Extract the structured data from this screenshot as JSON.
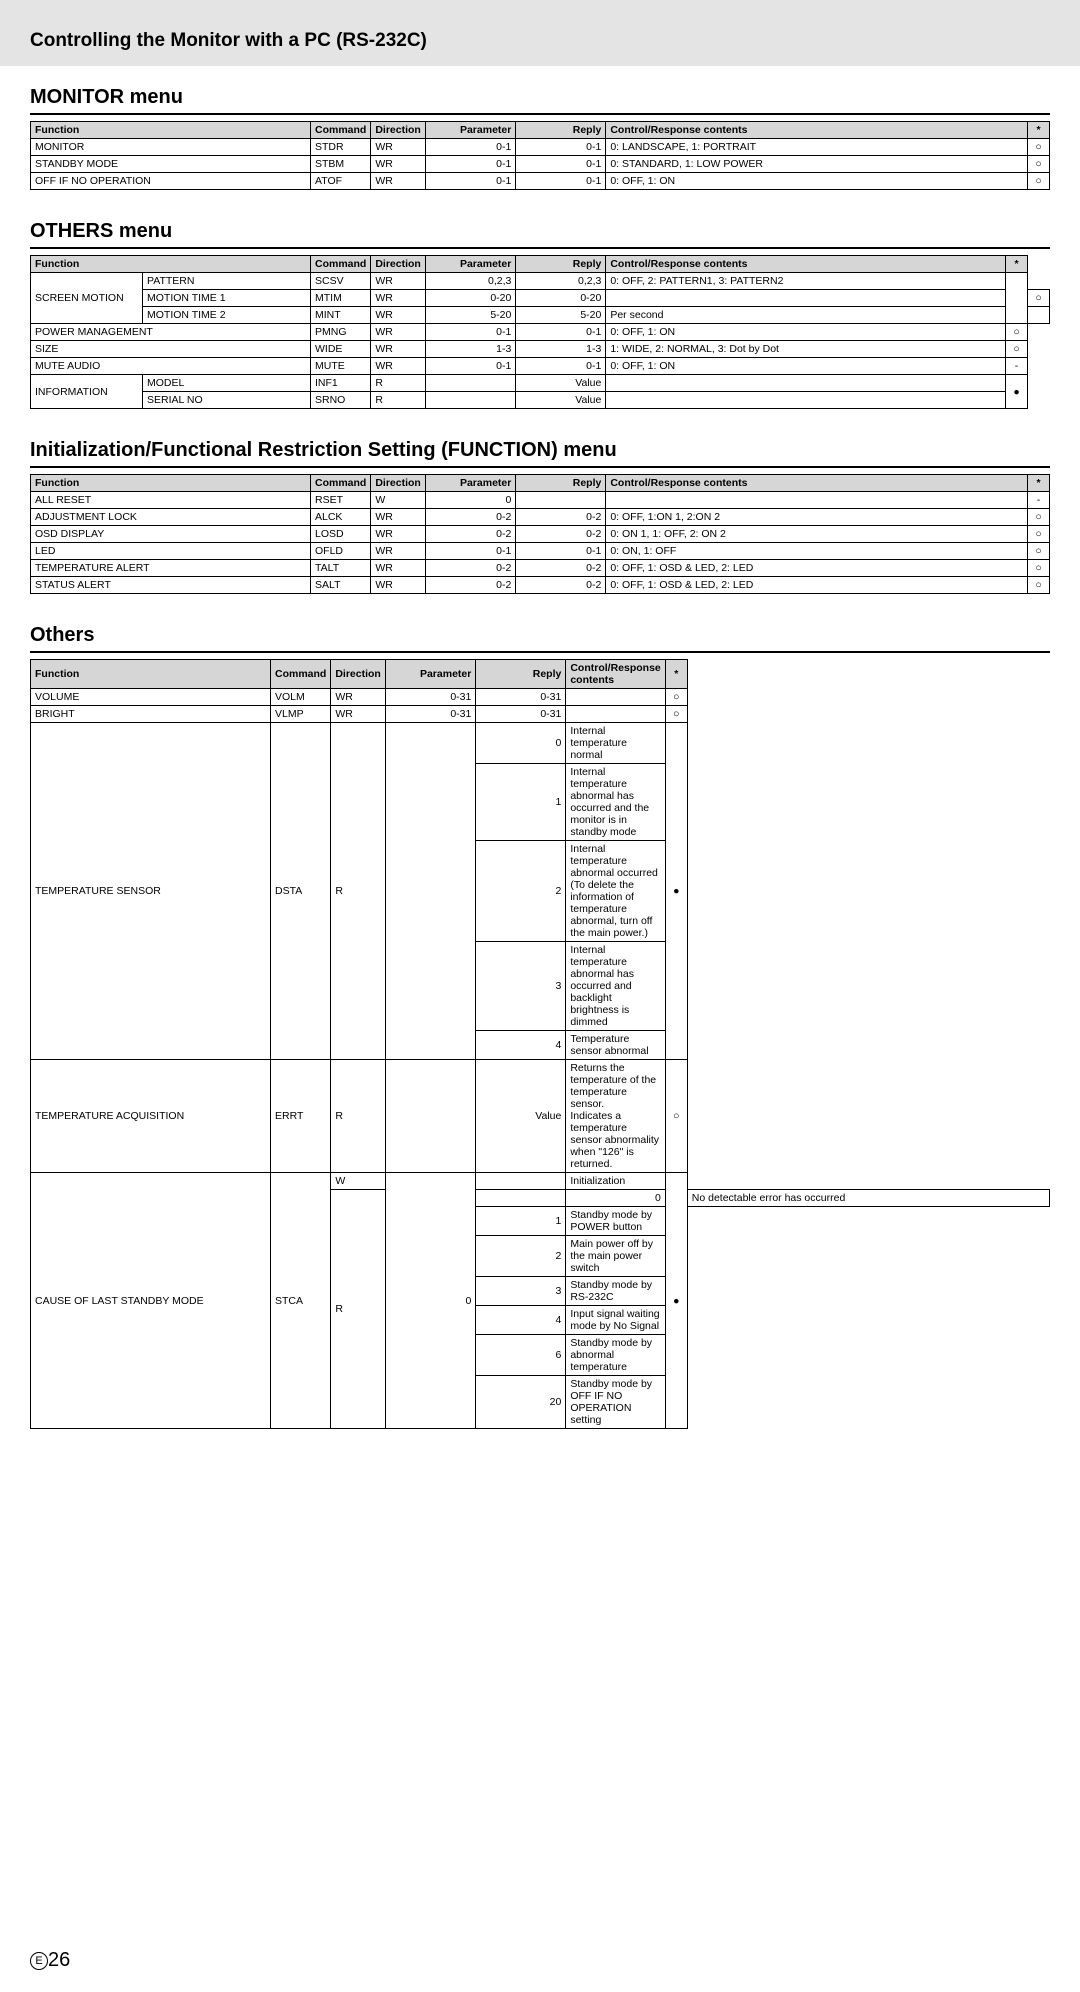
{
  "page": {
    "headerTitle": "Controlling the Monitor with a PC (RS-232C)",
    "pageNumber": "26",
    "pageE": "E"
  },
  "cols": {
    "function": "Function",
    "command": "Command",
    "direction": "Direction",
    "parameter": "Parameter",
    "reply": "Reply",
    "content": "Control/Response contents",
    "star": "*"
  },
  "monitor": {
    "title": "MONITOR menu",
    "rows": [
      {
        "func": "MONITOR",
        "cmd": "STDR",
        "dir": "WR",
        "param": "0-1",
        "reply": "0-1",
        "content": "0: LANDSCAPE, 1: PORTRAIT",
        "star": "○"
      },
      {
        "func": "STANDBY MODE",
        "cmd": "STBM",
        "dir": "WR",
        "param": "0-1",
        "reply": "0-1",
        "content": "0: STANDARD, 1: LOW POWER",
        "star": "○"
      },
      {
        "func": "OFF IF NO OPERATION",
        "cmd": "ATOF",
        "dir": "WR",
        "param": "0-1",
        "reply": "0-1",
        "content": "0: OFF, 1: ON",
        "star": "○"
      }
    ]
  },
  "others_menu": {
    "title": "OTHERS menu",
    "rows": [
      {
        "func": "SCREEN MOTION",
        "sub": "PATTERN",
        "cmd": "SCSV",
        "dir": "WR",
        "param": "0,2,3",
        "reply": "0,2,3",
        "content": "0: OFF, 2: PATTERN1, 3: PATTERN2",
        "star": "",
        "funcspan": 3,
        "starspan": 3
      },
      {
        "sub": "MOTION TIME 1",
        "cmd": "MTIM",
        "dir": "WR",
        "param": "0-20",
        "reply": "0-20",
        "content": "",
        "star": "○",
        "starspan": 1
      },
      {
        "sub": "MOTION TIME 2",
        "cmd": "MINT",
        "dir": "WR",
        "param": "5-20",
        "reply": "5-20",
        "content": "Per second",
        "star": "",
        "starspan": 1
      },
      {
        "func": "POWER MANAGEMENT",
        "sub": "",
        "cmd": "PMNG",
        "dir": "WR",
        "param": "0-1",
        "reply": "0-1",
        "content": "0: OFF, 1: ON",
        "star": "○"
      },
      {
        "func": "SIZE",
        "sub": "",
        "cmd": "WIDE",
        "dir": "WR",
        "param": "1-3",
        "reply": "1-3",
        "content": "1: WIDE, 2: NORMAL, 3: Dot by Dot",
        "star": "○"
      },
      {
        "func": "MUTE AUDIO",
        "sub": "",
        "cmd": "MUTE",
        "dir": "WR",
        "param": "0-1",
        "reply": "0-1",
        "content": "0: OFF, 1: ON",
        "star": "-"
      },
      {
        "func": "INFORMATION",
        "sub": "MODEL",
        "cmd": "INF1",
        "dir": "R",
        "param": "",
        "reply": "Value",
        "content": "",
        "star": "●",
        "funcspan": 2,
        "starspan": 2
      },
      {
        "sub": "SERIAL NO",
        "cmd": "SRNO",
        "dir": "R",
        "param": "",
        "reply": "Value",
        "content": ""
      }
    ]
  },
  "init": {
    "title": "Initialization/Functional Restriction Setting (FUNCTION) menu",
    "rows": [
      {
        "func": "ALL RESET",
        "cmd": "RSET",
        "dir": "W",
        "param": "0",
        "reply": "",
        "content": "",
        "star": "-"
      },
      {
        "func": "ADJUSTMENT LOCK",
        "cmd": "ALCK",
        "dir": "WR",
        "param": "0-2",
        "reply": "0-2",
        "content": "0: OFF, 1:ON 1, 2:ON 2",
        "star": "○"
      },
      {
        "func": "OSD DISPLAY",
        "cmd": "LOSD",
        "dir": "WR",
        "param": "0-2",
        "reply": "0-2",
        "content": "0: ON 1, 1: OFF, 2: ON 2",
        "star": "○"
      },
      {
        "func": "LED",
        "cmd": "OFLD",
        "dir": "WR",
        "param": "0-1",
        "reply": "0-1",
        "content": "0: ON, 1: OFF",
        "star": "○"
      },
      {
        "func": "TEMPERATURE ALERT",
        "cmd": "TALT",
        "dir": "WR",
        "param": "0-2",
        "reply": "0-2",
        "content": "0: OFF, 1: OSD & LED, 2: LED",
        "star": "○"
      },
      {
        "func": "STATUS ALERT",
        "cmd": "SALT",
        "dir": "WR",
        "param": "0-2",
        "reply": "0-2",
        "content": "0: OFF, 1: OSD & LED, 2: LED",
        "star": "○"
      }
    ]
  },
  "others": {
    "title": "Others",
    "rows": [
      {
        "func": "VOLUME",
        "cmd": "VOLM",
        "dir": "WR",
        "param": "0-31",
        "reply": "0-31",
        "content": "",
        "star": "○"
      },
      {
        "func": "BRIGHT",
        "cmd": "VLMP",
        "dir": "WR",
        "param": "0-31",
        "reply": "0-31",
        "content": "",
        "star": "○"
      },
      {
        "func": "TEMPERATURE SENSOR",
        "cmd": "DSTA",
        "dir": "R",
        "param": "",
        "reply": "0",
        "content": "Internal temperature normal",
        "star": "●",
        "funcspan": 5,
        "cmdspan": 5,
        "dirspan": 5,
        "paramspan": 5,
        "starspan": 5
      },
      {
        "reply": "1",
        "content": "Internal temperature abnormal has occurred and the monitor is in standby mode"
      },
      {
        "reply": "2",
        "content": "Internal temperature abnormal occurred (To delete the information of temperature abnormal, turn off the main power.)"
      },
      {
        "reply": "3",
        "content": "Internal temperature abnormal has occurred and backlight brightness is dimmed"
      },
      {
        "reply": "4",
        "content": "Temperature sensor abnormal"
      },
      {
        "func": "TEMPERATURE ACQUISITION",
        "cmd": "ERRT",
        "dir": "R",
        "param": "",
        "reply": "Value",
        "content": "Returns the temperature of the temperature sensor.\nIndicates a temperature sensor abnormality when \"126\" is returned.",
        "star": "○"
      },
      {
        "func": "CAUSE OF LAST STANDBY MODE",
        "cmd": "STCA",
        "dir": "W",
        "param": "0",
        "reply": "",
        "content": "Initialization",
        "star": "●",
        "funcspan": 8,
        "cmdspan": 8,
        "paramspan": 8,
        "starspan": 8
      },
      {
        "dir": "R",
        "param": "",
        "reply": "0",
        "content": "No detectable error has occurred",
        "dirspan": 7
      },
      {
        "reply": "1",
        "content": "Standby mode by POWER button"
      },
      {
        "reply": "2",
        "content": "Main power off by the main power switch"
      },
      {
        "reply": "3",
        "content": "Standby mode by RS-232C"
      },
      {
        "reply": "4",
        "content": "Input signal waiting mode by No Signal"
      },
      {
        "reply": "6",
        "content": "Standby mode by abnormal temperature"
      },
      {
        "reply": "20",
        "content": "Standby mode by OFF IF NO OPERATION setting"
      }
    ]
  }
}
